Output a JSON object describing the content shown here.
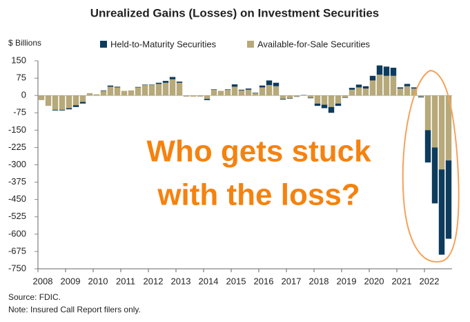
{
  "chart_data": {
    "type": "stacked_bar",
    "title": "Unrealized Gains (Losses) on Investment Securities",
    "y_label": "$ Billions",
    "annotation": [
      "Who gets stuck",
      "with the loss?"
    ],
    "source": "Source: FDIC.",
    "note": "Note: Insured Call Report filers only.",
    "categories": [
      "2008",
      null,
      null,
      null,
      "2009",
      null,
      null,
      null,
      "2010",
      null,
      null,
      null,
      "2011",
      null,
      null,
      null,
      "2012",
      null,
      null,
      null,
      "2013",
      null,
      null,
      null,
      "2014",
      null,
      null,
      null,
      "2015",
      null,
      null,
      null,
      "2016",
      null,
      null,
      null,
      "2017",
      null,
      null,
      null,
      "2018",
      null,
      null,
      null,
      "2019",
      null,
      null,
      null,
      "2020",
      null,
      null,
      null,
      "2021",
      null,
      null,
      null,
      "2022",
      null,
      null,
      null
    ],
    "series": [
      {
        "name": "Held-to-Maturity Securities",
        "color": "#0d3b5c",
        "values": [
          0,
          0,
          -3,
          -3,
          -5,
          -8,
          -7,
          0,
          0,
          2,
          5,
          3,
          0,
          0,
          2,
          2,
          2,
          5,
          8,
          10,
          5,
          0,
          0,
          0,
          -5,
          2,
          0,
          2,
          10,
          3,
          5,
          2,
          8,
          20,
          15,
          -3,
          -2,
          -1,
          2,
          -2,
          -10,
          -15,
          -25,
          -10,
          -2,
          8,
          12,
          10,
          20,
          40,
          40,
          35,
          5,
          10,
          5,
          -3,
          -140,
          -242,
          -369,
          -339
        ]
      },
      {
        "name": "Available-for-Sale Securities",
        "color": "#b7a979",
        "values": [
          -20,
          -45,
          -62,
          -62,
          -55,
          -42,
          -28,
          10,
          5,
          20,
          38,
          35,
          20,
          22,
          35,
          45,
          45,
          50,
          55,
          70,
          55,
          -5,
          -5,
          -5,
          -15,
          25,
          20,
          25,
          38,
          22,
          25,
          10,
          35,
          45,
          40,
          -15,
          -12,
          -5,
          0,
          -10,
          -35,
          -40,
          -50,
          -35,
          -8,
          25,
          35,
          30,
          65,
          90,
          85,
          85,
          30,
          40,
          30,
          -5,
          -150,
          -225,
          -320,
          -281
        ]
      }
    ],
    "ylim": [
      -750,
      150
    ],
    "yticks": [
      150,
      75,
      0,
      -75,
      -150,
      -225,
      -300,
      -375,
      -450,
      -525,
      -600,
      -675,
      -750
    ]
  }
}
